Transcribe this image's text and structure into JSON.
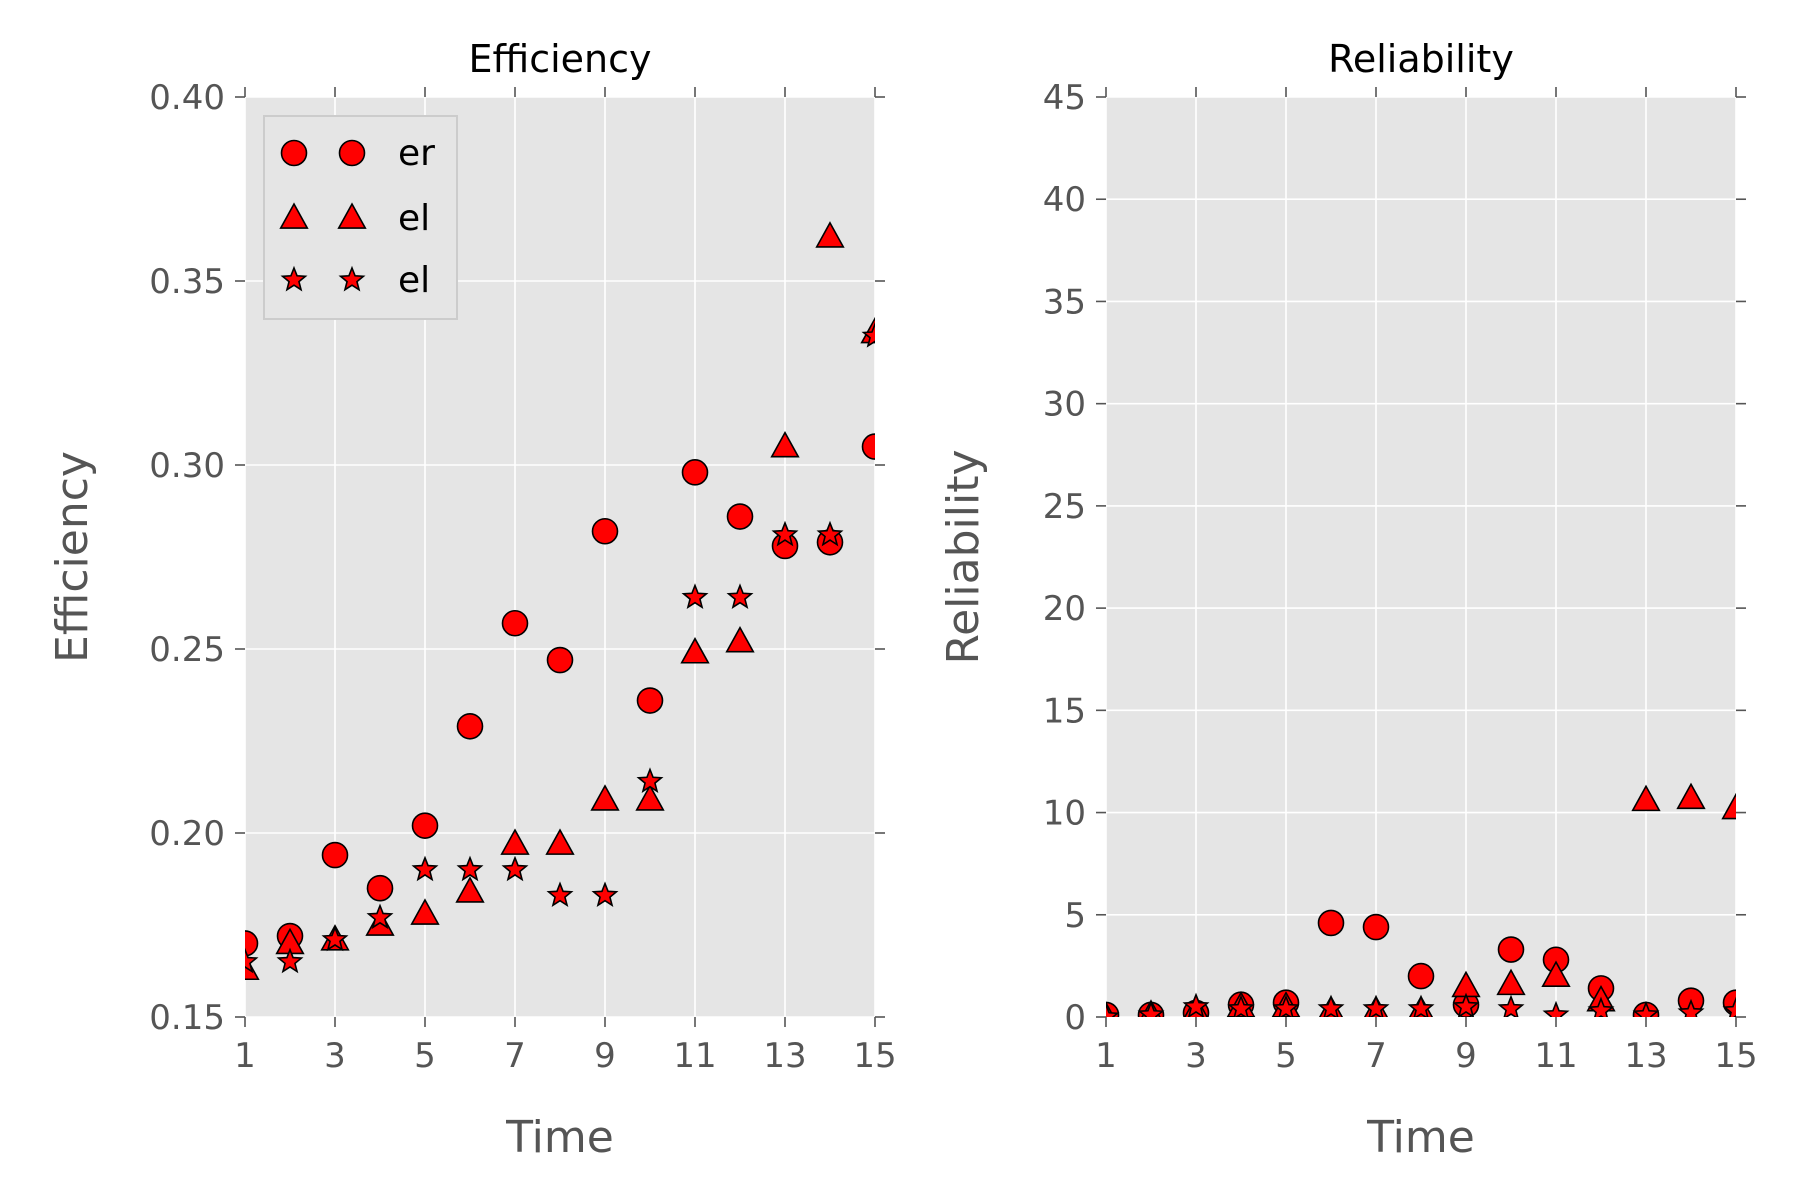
{
  "colors": {
    "marker_fill": "#ff0000",
    "marker_edge": "#000000",
    "axes_bg": "#e5e5e5",
    "grid": "#ffffff",
    "text": "#555555"
  },
  "chart_data": [
    {
      "type": "scatter",
      "title": "Efficiency",
      "xlabel": "Time",
      "ylabel": "Efficiency",
      "xlim": [
        1,
        15
      ],
      "ylim": [
        0.15,
        0.4
      ],
      "xticks": [
        1,
        3,
        5,
        7,
        9,
        11,
        13,
        15
      ],
      "yticks": [
        0.15,
        0.2,
        0.25,
        0.3,
        0.35,
        0.4
      ],
      "ytick_labels": [
        "0.15",
        "0.20",
        "0.25",
        "0.30",
        "0.35",
        "0.40"
      ],
      "grid": true,
      "legend": "top-left",
      "x": [
        1,
        2,
        3,
        4,
        5,
        6,
        7,
        8,
        9,
        10,
        11,
        12,
        13,
        14,
        15
      ],
      "series": [
        {
          "name": "er",
          "marker": "circle",
          "values": [
            0.17,
            0.172,
            0.194,
            0.185,
            0.202,
            0.229,
            0.257,
            0.247,
            0.282,
            0.236,
            0.298,
            0.286,
            0.278,
            0.279,
            0.305
          ]
        },
        {
          "name": "el",
          "marker": "triangle",
          "values": [
            0.163,
            0.17,
            0.171,
            0.175,
            0.178,
            0.184,
            0.197,
            0.197,
            0.209,
            0.209,
            0.249,
            0.252,
            0.305,
            0.362,
            0.336
          ]
        },
        {
          "name": "el",
          "marker": "star",
          "values": [
            0.165,
            0.165,
            0.171,
            0.177,
            0.19,
            0.19,
            0.19,
            0.183,
            0.183,
            0.214,
            0.264,
            0.264,
            0.281,
            0.281,
            0.335
          ]
        }
      ]
    },
    {
      "type": "scatter",
      "title": "Reliability",
      "xlabel": "Time",
      "ylabel": "Reliability",
      "xlim": [
        1,
        15
      ],
      "ylim": [
        0,
        45
      ],
      "xticks": [
        1,
        3,
        5,
        7,
        9,
        11,
        13,
        15
      ],
      "yticks": [
        0,
        5,
        10,
        15,
        20,
        25,
        30,
        35,
        40,
        45
      ],
      "ytick_labels": [
        "0",
        "5",
        "10",
        "15",
        "20",
        "25",
        "30",
        "35",
        "40",
        "45"
      ],
      "grid": true,
      "x": [
        1,
        2,
        3,
        4,
        5,
        6,
        7,
        8,
        9,
        10,
        11,
        12,
        13,
        14,
        15
      ],
      "series": [
        {
          "marker": "circle",
          "values": [
            0.1,
            0.1,
            0.2,
            0.6,
            0.7,
            4.6,
            4.4,
            2.0,
            0.6,
            3.3,
            2.8,
            1.4,
            0.1,
            0.8,
            0.7
          ]
        },
        {
          "marker": "triangle",
          "values": [
            0.0,
            0.1,
            0.3,
            0.5,
            0.5,
            0.3,
            0.3,
            0.3,
            1.5,
            1.6,
            2.0,
            0.8,
            10.6,
            10.7,
            10.2
          ]
        },
        {
          "marker": "star",
          "values": [
            0.0,
            0.1,
            0.5,
            0.4,
            0.4,
            0.4,
            0.4,
            0.4,
            0.5,
            0.4,
            0.1,
            0.3,
            0.1,
            0.2,
            0.3
          ]
        }
      ]
    }
  ]
}
